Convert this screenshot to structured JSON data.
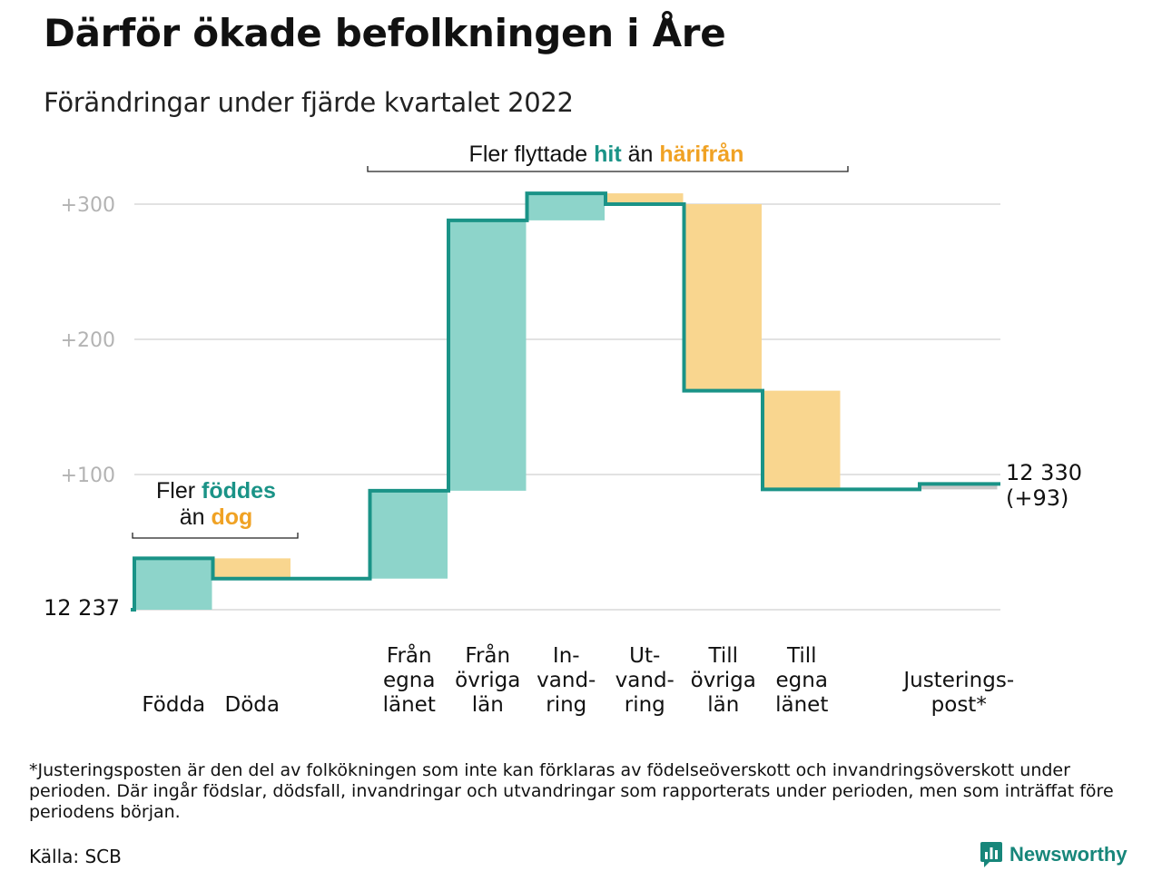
{
  "title": "Därför ökade befolkningen i Åre",
  "subtitle": "Förändringar under fjärde kvartalet 2022",
  "colors": {
    "increase": "#8dd4ca",
    "decrease": "#f9d68f",
    "adjustment": "#c8c8c8",
    "line": "#1a9387",
    "accent_hit": "#1a9387",
    "accent_from": "#f0a224",
    "grid": "#e2e2e2",
    "tick": "#b3b3b3"
  },
  "annotations": {
    "births": {
      "line1_pre": "Fler ",
      "line1_em": "föddes",
      "line2_pre": "än ",
      "line2_em": "dog"
    },
    "moves": {
      "pre": "Fler flyttade ",
      "em1": "hit",
      "mid": " än ",
      "em2": "härifrån"
    }
  },
  "footnote": "*Justeringsposten är den del av folkökningen som inte kan förklaras av födelseöverskott och invandringsöverskott under perioden. Där ingår födslar, dödsfall, invandringar och utvandringar som rapporterats under perioden, men som inträffat före periodens början.",
  "source": "Källa: SCB",
  "brand": "Newsworthy",
  "chart_data": {
    "type": "waterfall",
    "start_label": "12 237",
    "end_label": "12 330",
    "end_change_label": "(+93)",
    "yticks": [
      100,
      200,
      300
    ],
    "ytick_labels": [
      "+100",
      "+200",
      "+300"
    ],
    "ylim": [
      0,
      310
    ],
    "grid": true,
    "steps": [
      {
        "label": [
          "Födda"
        ],
        "change": 38,
        "kind": "increase"
      },
      {
        "label": [
          "Döda"
        ],
        "change": -15,
        "kind": "decrease"
      },
      {
        "label": [],
        "change": 0,
        "kind": "spacer"
      },
      {
        "label": [
          "Från",
          "egna",
          "länet"
        ],
        "change": 65,
        "kind": "increase"
      },
      {
        "label": [
          "Från",
          "övriga",
          "län"
        ],
        "change": 200,
        "kind": "increase"
      },
      {
        "label": [
          "In-",
          "vand-",
          "ring"
        ],
        "change": 20,
        "kind": "increase"
      },
      {
        "label": [
          "Ut-",
          "vand-",
          "ring"
        ],
        "change": -8,
        "kind": "decrease"
      },
      {
        "label": [
          "Till",
          "övriga",
          "län"
        ],
        "change": -138,
        "kind": "decrease"
      },
      {
        "label": [
          "Till",
          "egna",
          "länet"
        ],
        "change": -73,
        "kind": "decrease"
      },
      {
        "label": [],
        "change": 0,
        "kind": "spacer"
      },
      {
        "label": [
          "Justerings-",
          "post*"
        ],
        "change": 4,
        "kind": "adjustment"
      }
    ]
  }
}
